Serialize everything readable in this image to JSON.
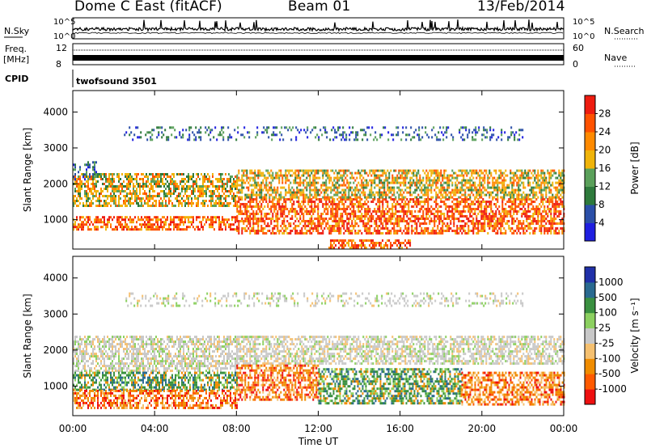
{
  "header": {
    "site": "Dome C East (fitACF)",
    "beam": "Beam 01",
    "date": "13/Feb/2014"
  },
  "strips": {
    "nsky_label": "N.Sky",
    "nsky_ticks": [
      "10^5",
      "10^0"
    ],
    "nsearch_label": "N.Search",
    "nsearch_ticks": [
      "10^5",
      "10^0"
    ],
    "freq_label_1": "Freq.",
    "freq_label_2": "[MHz]",
    "freq_ticks": [
      "12",
      "8"
    ],
    "nave_label": "Nave",
    "nave_ticks": [
      "60",
      "0"
    ],
    "cpid_label": "CPID",
    "cpid_value": "twofsound 3501"
  },
  "colors": {
    "power": [
      "#1f1fe0",
      "#2b4fa8",
      "#2e7a3c",
      "#5aa05a",
      "#f0b40a",
      "#ff8a00",
      "#ff5200",
      "#ee1c10"
    ],
    "velocity": [
      "#ee1010",
      "#ff5a00",
      "#f08c00",
      "#f5c070",
      "#c8c8c8",
      "#8cd060",
      "#3a9040",
      "#2a6a90",
      "#2030a8"
    ]
  },
  "chart_data": [
    {
      "type": "heatmap",
      "name": "power-panel",
      "ylabel": "Slant Range [km]",
      "xlabel": "",
      "xlim": [
        "00:00",
        "24:00"
      ],
      "ylim": [
        180,
        4600
      ],
      "yticks": [
        1000,
        2000,
        3000,
        4000
      ],
      "xticks": [
        "00:00",
        "04:00",
        "08:00",
        "12:00",
        "16:00",
        "20:00",
        "00:00"
      ],
      "colorbar": {
        "label": "Power [dB]",
        "range": [
          0,
          32
        ],
        "ticks": [
          "4",
          "8",
          "12",
          "16",
          "20",
          "24",
          "28"
        ]
      },
      "bands": [
        {
          "from_h": 0.0,
          "to_h": 8.0,
          "range_km": [
            700,
            1100
          ],
          "level": "high"
        },
        {
          "from_h": 0.0,
          "to_h": 8.0,
          "range_km": [
            1400,
            2300
          ],
          "level": "medium"
        },
        {
          "from_h": 0.0,
          "to_h": 1.2,
          "range_km": [
            2100,
            2700
          ],
          "level": "low"
        },
        {
          "from_h": 8.0,
          "to_h": 24.0,
          "range_km": [
            600,
            1600
          ],
          "level": "high"
        },
        {
          "from_h": 8.0,
          "to_h": 24.0,
          "range_km": [
            1600,
            2400
          ],
          "level": "medium"
        },
        {
          "from_h": 2.5,
          "to_h": 22.0,
          "range_km": [
            3200,
            3600
          ],
          "level": "low"
        },
        {
          "from_h": 12.5,
          "to_h": 16.5,
          "range_km": [
            200,
            450
          ],
          "level": "high"
        }
      ]
    },
    {
      "type": "heatmap",
      "name": "velocity-panel",
      "ylabel": "Slant Range [km]",
      "xlabel": "Time UT",
      "xlim": [
        "00:00",
        "24:00"
      ],
      "ylim": [
        180,
        4600
      ],
      "yticks": [
        1000,
        2000,
        3000,
        4000
      ],
      "xticks": [
        "00:00",
        "04:00",
        "08:00",
        "12:00",
        "16:00",
        "20:00",
        "00:00"
      ],
      "colorbar": {
        "label": "Velocity [m s⁻¹]",
        "ticks": [
          "1000",
          "500",
          "100",
          "25",
          "-25",
          "-100",
          "-500",
          "-1000"
        ]
      },
      "bands": [
        {
          "from_h": 0.0,
          "to_h": 8.0,
          "range_km": [
            1400,
            2400
          ],
          "level": "grey"
        },
        {
          "from_h": 0.0,
          "to_h": 8.0,
          "range_km": [
            900,
            1400
          ],
          "level": "green"
        },
        {
          "from_h": 0.0,
          "to_h": 8.0,
          "range_km": [
            400,
            900
          ],
          "level": "orange"
        },
        {
          "from_h": 8.0,
          "to_h": 24.0,
          "range_km": [
            1600,
            2400
          ],
          "level": "grey"
        },
        {
          "from_h": 8.0,
          "to_h": 12.0,
          "range_km": [
            600,
            1600
          ],
          "level": "orange"
        },
        {
          "from_h": 12.0,
          "to_h": 19.0,
          "range_km": [
            500,
            1500
          ],
          "level": "green"
        },
        {
          "from_h": 19.0,
          "to_h": 24.0,
          "range_km": [
            500,
            1400
          ],
          "level": "orange"
        },
        {
          "from_h": 2.5,
          "to_h": 22.0,
          "range_km": [
            3200,
            3600
          ],
          "level": "grey"
        }
      ]
    }
  ]
}
